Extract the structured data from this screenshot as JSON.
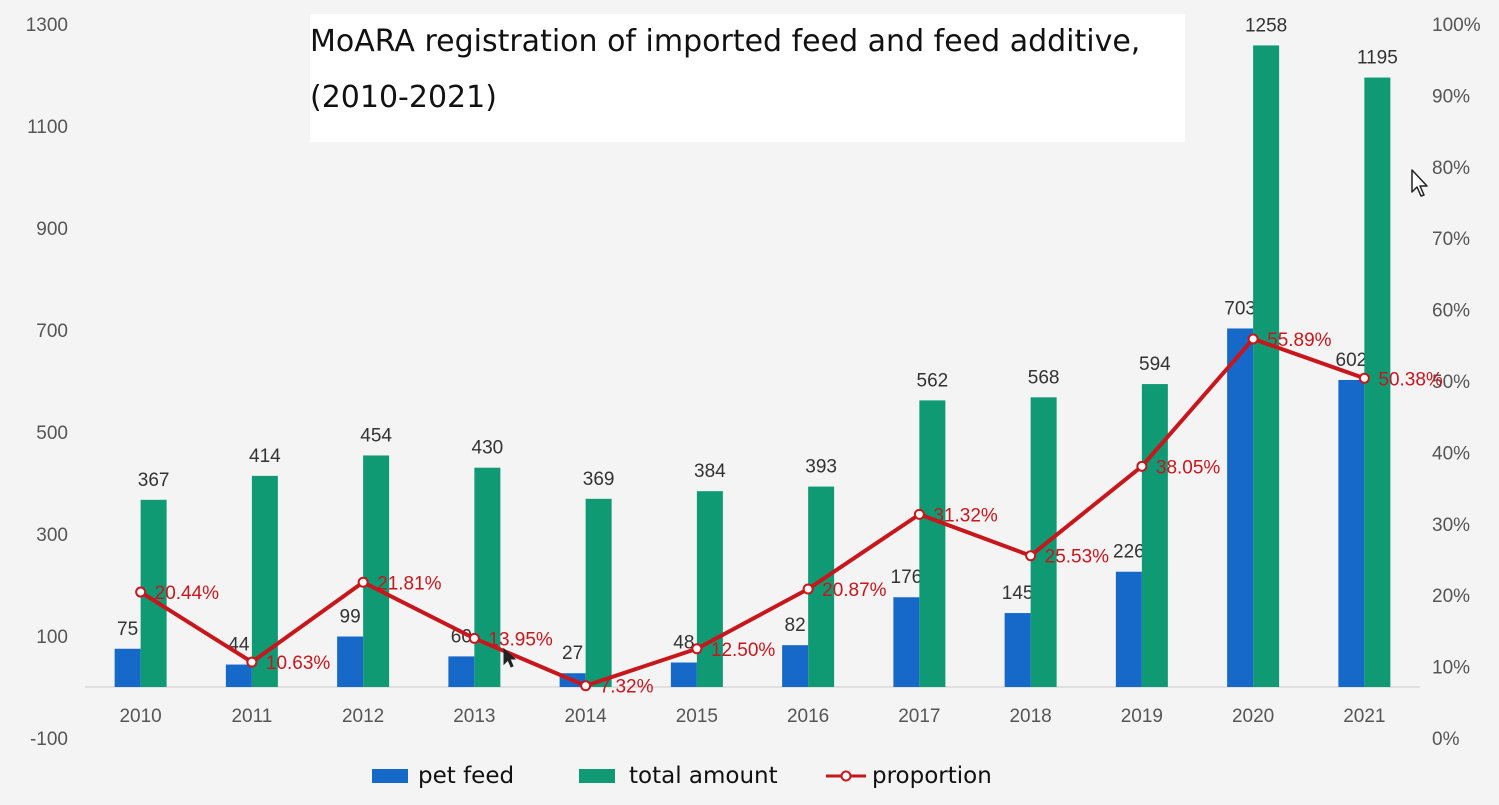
{
  "title": {
    "line1": "MoARA registration of imported feed and feed additive,",
    "line2": "(2010-2021)"
  },
  "legend": {
    "pet_feed": "pet feed",
    "total_amount": "total amount",
    "proportion": "proportion"
  },
  "colors": {
    "pet_feed": "#1769c9",
    "total_amount": "#0f9a74",
    "proportion": "#c8161d",
    "background": "#f4f4f4"
  },
  "chart_data": {
    "type": "bar",
    "categories": [
      "2010",
      "2011",
      "2012",
      "2013",
      "2014",
      "2015",
      "2016",
      "2017",
      "2018",
      "2019",
      "2020",
      "2021"
    ],
    "series": [
      {
        "name": "pet feed",
        "type": "bar",
        "axis": "left",
        "values": [
          75,
          44,
          99,
          60,
          27,
          48,
          82,
          176,
          145,
          226,
          703,
          602
        ],
        "labels": [
          "75",
          "44",
          "99",
          "60",
          "27",
          "48",
          "82",
          "176",
          "145",
          "226",
          "703",
          "602"
        ]
      },
      {
        "name": "total amount",
        "type": "bar",
        "axis": "left",
        "values": [
          367,
          414,
          454,
          430,
          369,
          384,
          393,
          562,
          568,
          594,
          1258,
          1195
        ],
        "labels": [
          "367",
          "414",
          "454",
          "430",
          "369",
          "384",
          "393",
          "562",
          "568",
          "594",
          "1258",
          "1195"
        ]
      },
      {
        "name": "proportion",
        "type": "line",
        "axis": "right",
        "values": [
          20.44,
          10.63,
          21.81,
          13.95,
          7.32,
          12.5,
          20.87,
          31.32,
          25.53,
          38.05,
          55.89,
          50.38
        ],
        "labels": [
          "20.44%",
          "10.63%",
          "21.81%",
          "13.95%",
          "7.32%",
          "12.50%",
          "20.87%",
          "31.32%",
          "25.53%",
          "38.05%",
          "55.89%",
          "50.38%"
        ]
      }
    ],
    "y_left": {
      "ticks": [
        "-100",
        "100",
        "300",
        "500",
        "700",
        "900",
        "1100",
        "1300"
      ],
      "ylim": [
        -100,
        1300
      ]
    },
    "y_right": {
      "ticks": [
        "0%",
        "10%",
        "20%",
        "30%",
        "40%",
        "50%",
        "60%",
        "70%",
        "80%",
        "90%",
        "100%"
      ],
      "ylim": [
        0,
        100
      ]
    },
    "grid": false,
    "legend_position": "bottom"
  }
}
